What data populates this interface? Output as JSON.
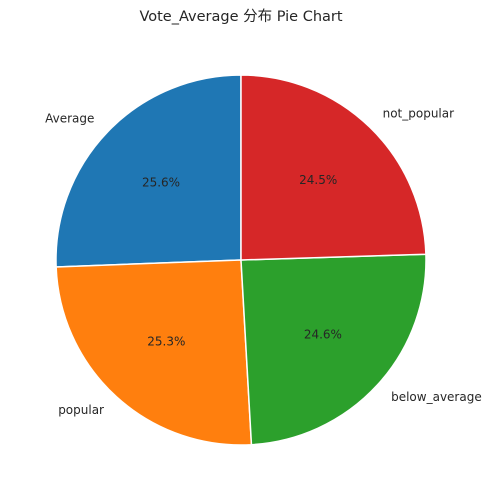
{
  "chart_data": {
    "type": "pie",
    "title": "Vote_Average 分布 Pie Chart",
    "start_angle_deg": 90,
    "direction": "counterclockwise",
    "slices": [
      {
        "label": "Average",
        "value": 25.6,
        "pct_label": "25.6%",
        "color": "#1f77b4"
      },
      {
        "label": "popular",
        "value": 25.3,
        "pct_label": "25.3%",
        "color": "#ff7f0e"
      },
      {
        "label": "below_average",
        "value": 24.6,
        "pct_label": "24.6%",
        "color": "#2ca02c"
      },
      {
        "label": "not_popular",
        "value": 24.5,
        "pct_label": "24.5%",
        "color": "#d62728"
      }
    ],
    "wedge_edge_color": "#ffffff"
  }
}
